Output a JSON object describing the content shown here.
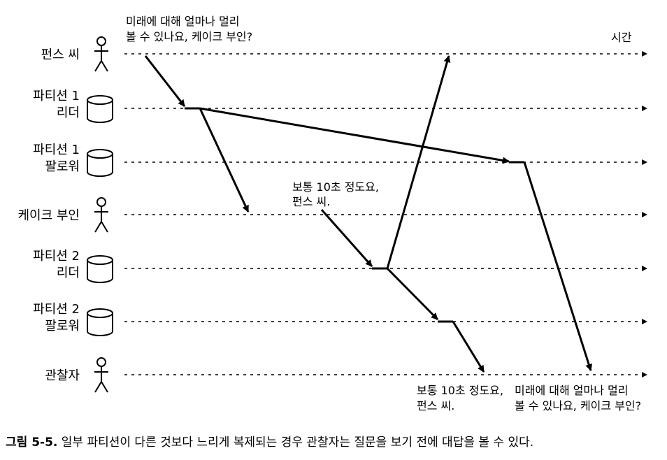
{
  "participants": [
    {
      "label_lines": [
        "펀스 씨"
      ],
      "icon": "person-icon"
    },
    {
      "label_lines": [
        "파티션 1",
        "리더"
      ],
      "icon": "database-icon"
    },
    {
      "label_lines": [
        "파티션 1",
        "팔로워"
      ],
      "icon": "database-icon"
    },
    {
      "label_lines": [
        "케이크 부인"
      ],
      "icon": "person-icon"
    },
    {
      "label_lines": [
        "파티션 2",
        "리더"
      ],
      "icon": "database-icon"
    },
    {
      "label_lines": [
        "파티션 2",
        "팔로워"
      ],
      "icon": "database-icon"
    },
    {
      "label_lines": [
        "관찰자"
      ],
      "icon": "person-icon"
    }
  ],
  "time_label": "시간",
  "notes": {
    "question_top": [
      "미래에 대해 얼마나 멀리",
      "볼 수 있나요, 케이크 부인?"
    ],
    "answer_mid": [
      "보통 10초 정도요,",
      "펀스 씨."
    ],
    "answer_bottom": [
      "보통 10초 정도요,",
      "펀스 씨."
    ],
    "question_bottom": [
      "미래에 대해 얼마나 멀리",
      "볼 수 있나요, 케이크 부인?"
    ]
  },
  "caption": {
    "number": "그림 5-5.",
    "text": "일부 파티션이 다른 것보다 느리게 복제되는 경우 관찰자는 질문을 보기 전에 대답을 볼 수 있다."
  }
}
